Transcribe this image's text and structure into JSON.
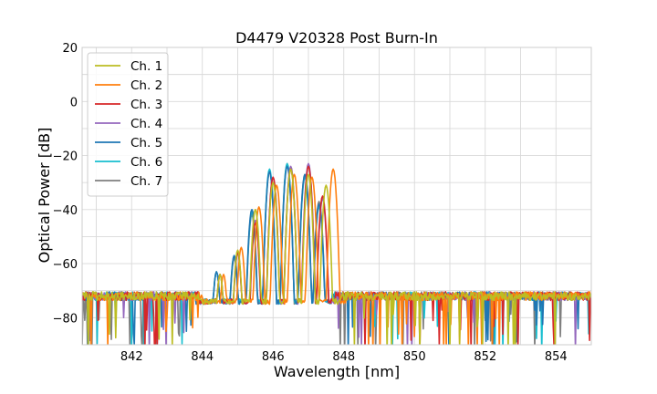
{
  "chart_data": {
    "type": "line",
    "title": "D4479 V20328 Post Burn-In",
    "xlabel": "Wavelength [nm]",
    "ylabel": "Optical Power [dB]",
    "xlim": [
      840.6,
      855.0
    ],
    "ylim": [
      -90,
      20
    ],
    "x_ticks": [
      842,
      844,
      846,
      848,
      850,
      852,
      854
    ],
    "y_ticks": [
      20,
      0,
      -20,
      -40,
      -60,
      -80
    ],
    "grid": true,
    "legend_position": "top-left",
    "noise_floor_db": -72,
    "series": [
      {
        "name": "Ch. 1",
        "color": "#bcbd22",
        "peaks": [
          [
            844.5,
            -64
          ],
          [
            845.0,
            -55
          ],
          [
            845.5,
            -40
          ],
          [
            846.0,
            -30
          ],
          [
            846.5,
            -25
          ],
          [
            847.0,
            -27
          ],
          [
            847.5,
            -31
          ]
        ]
      },
      {
        "name": "Ch. 2",
        "color": "#ff7f0e",
        "peaks": [
          [
            844.6,
            -64
          ],
          [
            845.1,
            -54
          ],
          [
            845.6,
            -39
          ],
          [
            846.1,
            -31
          ],
          [
            846.6,
            -27
          ],
          [
            847.1,
            -28
          ],
          [
            847.7,
            -25
          ]
        ]
      },
      {
        "name": "Ch. 3",
        "color": "#d62728",
        "peaks": [
          [
            844.5,
            -64
          ],
          [
            845.0,
            -56
          ],
          [
            845.5,
            -45
          ],
          [
            846.0,
            -28
          ],
          [
            846.5,
            -25
          ],
          [
            847.0,
            -24
          ],
          [
            847.4,
            -35
          ]
        ]
      },
      {
        "name": "Ch. 4",
        "color": "#9467bd",
        "peaks": [
          [
            844.5,
            -64
          ],
          [
            845.0,
            -56
          ],
          [
            845.5,
            -44
          ],
          [
            846.0,
            -28
          ],
          [
            846.5,
            -24
          ],
          [
            847.0,
            -23
          ],
          [
            847.4,
            -36
          ]
        ]
      },
      {
        "name": "Ch. 5",
        "color": "#1f77b4",
        "peaks": [
          [
            844.4,
            -63
          ],
          [
            844.9,
            -57
          ],
          [
            845.4,
            -40
          ],
          [
            845.9,
            -26
          ],
          [
            846.4,
            -24
          ],
          [
            846.9,
            -27
          ],
          [
            847.3,
            -38
          ]
        ]
      },
      {
        "name": "Ch. 6",
        "color": "#17becf",
        "peaks": [
          [
            844.4,
            -63
          ],
          [
            844.9,
            -57
          ],
          [
            845.4,
            -41
          ],
          [
            845.9,
            -25
          ],
          [
            846.4,
            -23
          ],
          [
            846.9,
            -28
          ],
          [
            847.3,
            -39
          ]
        ]
      },
      {
        "name": "Ch. 7",
        "color": "#7f7f7f",
        "peaks": [
          [
            844.4,
            -63
          ],
          [
            844.9,
            -58
          ],
          [
            845.4,
            -42
          ],
          [
            845.9,
            -26
          ],
          [
            846.4,
            -23
          ],
          [
            846.9,
            -27
          ],
          [
            847.3,
            -37
          ]
        ]
      }
    ]
  }
}
